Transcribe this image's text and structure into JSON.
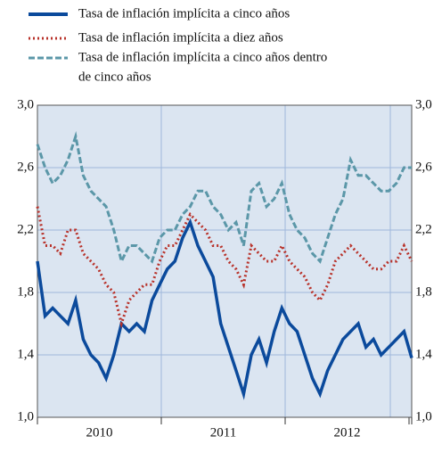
{
  "chart_data": {
    "type": "line",
    "legend": [
      "Tasa de inflación implícita a cinco años",
      "Tasa de inflación implícita a diez años",
      "Tasa de inflación implícita a cinco años dentro",
      "de cinco años"
    ],
    "x_labels": [
      "2010",
      "2011",
      "2012"
    ],
    "ylim": [
      1.0,
      3.0
    ],
    "yticks": [
      {
        "value": 1.0,
        "label": "1,0"
      },
      {
        "value": 1.4,
        "label": "1,4"
      },
      {
        "value": 1.8,
        "label": "1,8"
      },
      {
        "value": 2.2,
        "label": "2,2"
      },
      {
        "value": 2.6,
        "label": "2,6"
      },
      {
        "value": 3.0,
        "label": "3,0"
      }
    ],
    "grid": true,
    "series": [
      {
        "name": "Tasa de inflación implícita a cinco años",
        "color": "#0b4a9c",
        "style": "solid",
        "values": [
          2.0,
          1.65,
          1.7,
          1.65,
          1.6,
          1.75,
          1.5,
          1.4,
          1.35,
          1.25,
          1.4,
          1.6,
          1.55,
          1.6,
          1.55,
          1.75,
          1.85,
          1.95,
          2.0,
          2.15,
          2.25,
          2.1,
          2.0,
          1.9,
          1.6,
          1.45,
          1.3,
          1.15,
          1.4,
          1.5,
          1.35,
          1.55,
          1.7,
          1.6,
          1.55,
          1.4,
          1.25,
          1.15,
          1.3,
          1.4,
          1.5,
          1.55,
          1.6,
          1.45,
          1.5,
          1.4,
          1.45,
          1.5,
          1.55,
          1.38
        ]
      },
      {
        "name": "Tasa de inflación implícita a diez años",
        "color": "#b8322a",
        "style": "dotted",
        "values": [
          2.35,
          2.1,
          2.1,
          2.05,
          2.2,
          2.2,
          2.05,
          2.0,
          1.95,
          1.85,
          1.8,
          1.6,
          1.75,
          1.8,
          1.85,
          1.85,
          2.0,
          2.1,
          2.1,
          2.2,
          2.3,
          2.25,
          2.2,
          2.1,
          2.1,
          2.0,
          1.95,
          1.85,
          2.1,
          2.05,
          2.0,
          2.0,
          2.1,
          2.0,
          1.95,
          1.9,
          1.8,
          1.75,
          1.85,
          2.0,
          2.05,
          2.1,
          2.05,
          2.0,
          1.95,
          1.95,
          2.0,
          2.0,
          2.1,
          2.0
        ]
      },
      {
        "name": "Tasa de inflación implícita a cinco años dentro de cinco años",
        "color": "#5b97a8",
        "style": "dashed",
        "values": [
          2.75,
          2.6,
          2.5,
          2.55,
          2.65,
          2.8,
          2.55,
          2.45,
          2.4,
          2.35,
          2.2,
          2.0,
          2.1,
          2.1,
          2.05,
          2.0,
          2.15,
          2.2,
          2.2,
          2.3,
          2.35,
          2.45,
          2.45,
          2.35,
          2.3,
          2.2,
          2.25,
          2.1,
          2.45,
          2.5,
          2.35,
          2.4,
          2.5,
          2.3,
          2.2,
          2.15,
          2.05,
          2.0,
          2.15,
          2.3,
          2.4,
          2.65,
          2.55,
          2.55,
          2.5,
          2.45,
          2.45,
          2.5,
          2.6,
          2.6
        ]
      }
    ]
  }
}
